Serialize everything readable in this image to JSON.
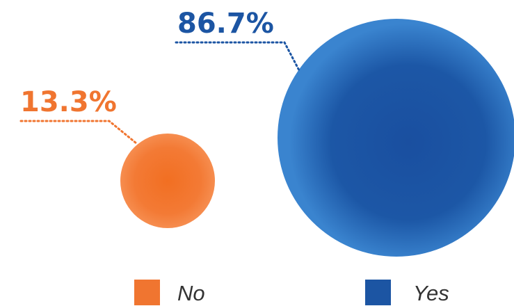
{
  "chart_data": {
    "type": "bubble",
    "title": "",
    "series": [
      {
        "name": "No",
        "value": 13.3,
        "label": "13.3%",
        "color": "#f07530"
      },
      {
        "name": "Yes",
        "value": 86.7,
        "label": "86.7%",
        "color": "#1c55a3"
      }
    ],
    "unit": "%",
    "legend": {
      "position": "bottom",
      "items": [
        "No",
        "Yes"
      ]
    },
    "grid": false
  }
}
